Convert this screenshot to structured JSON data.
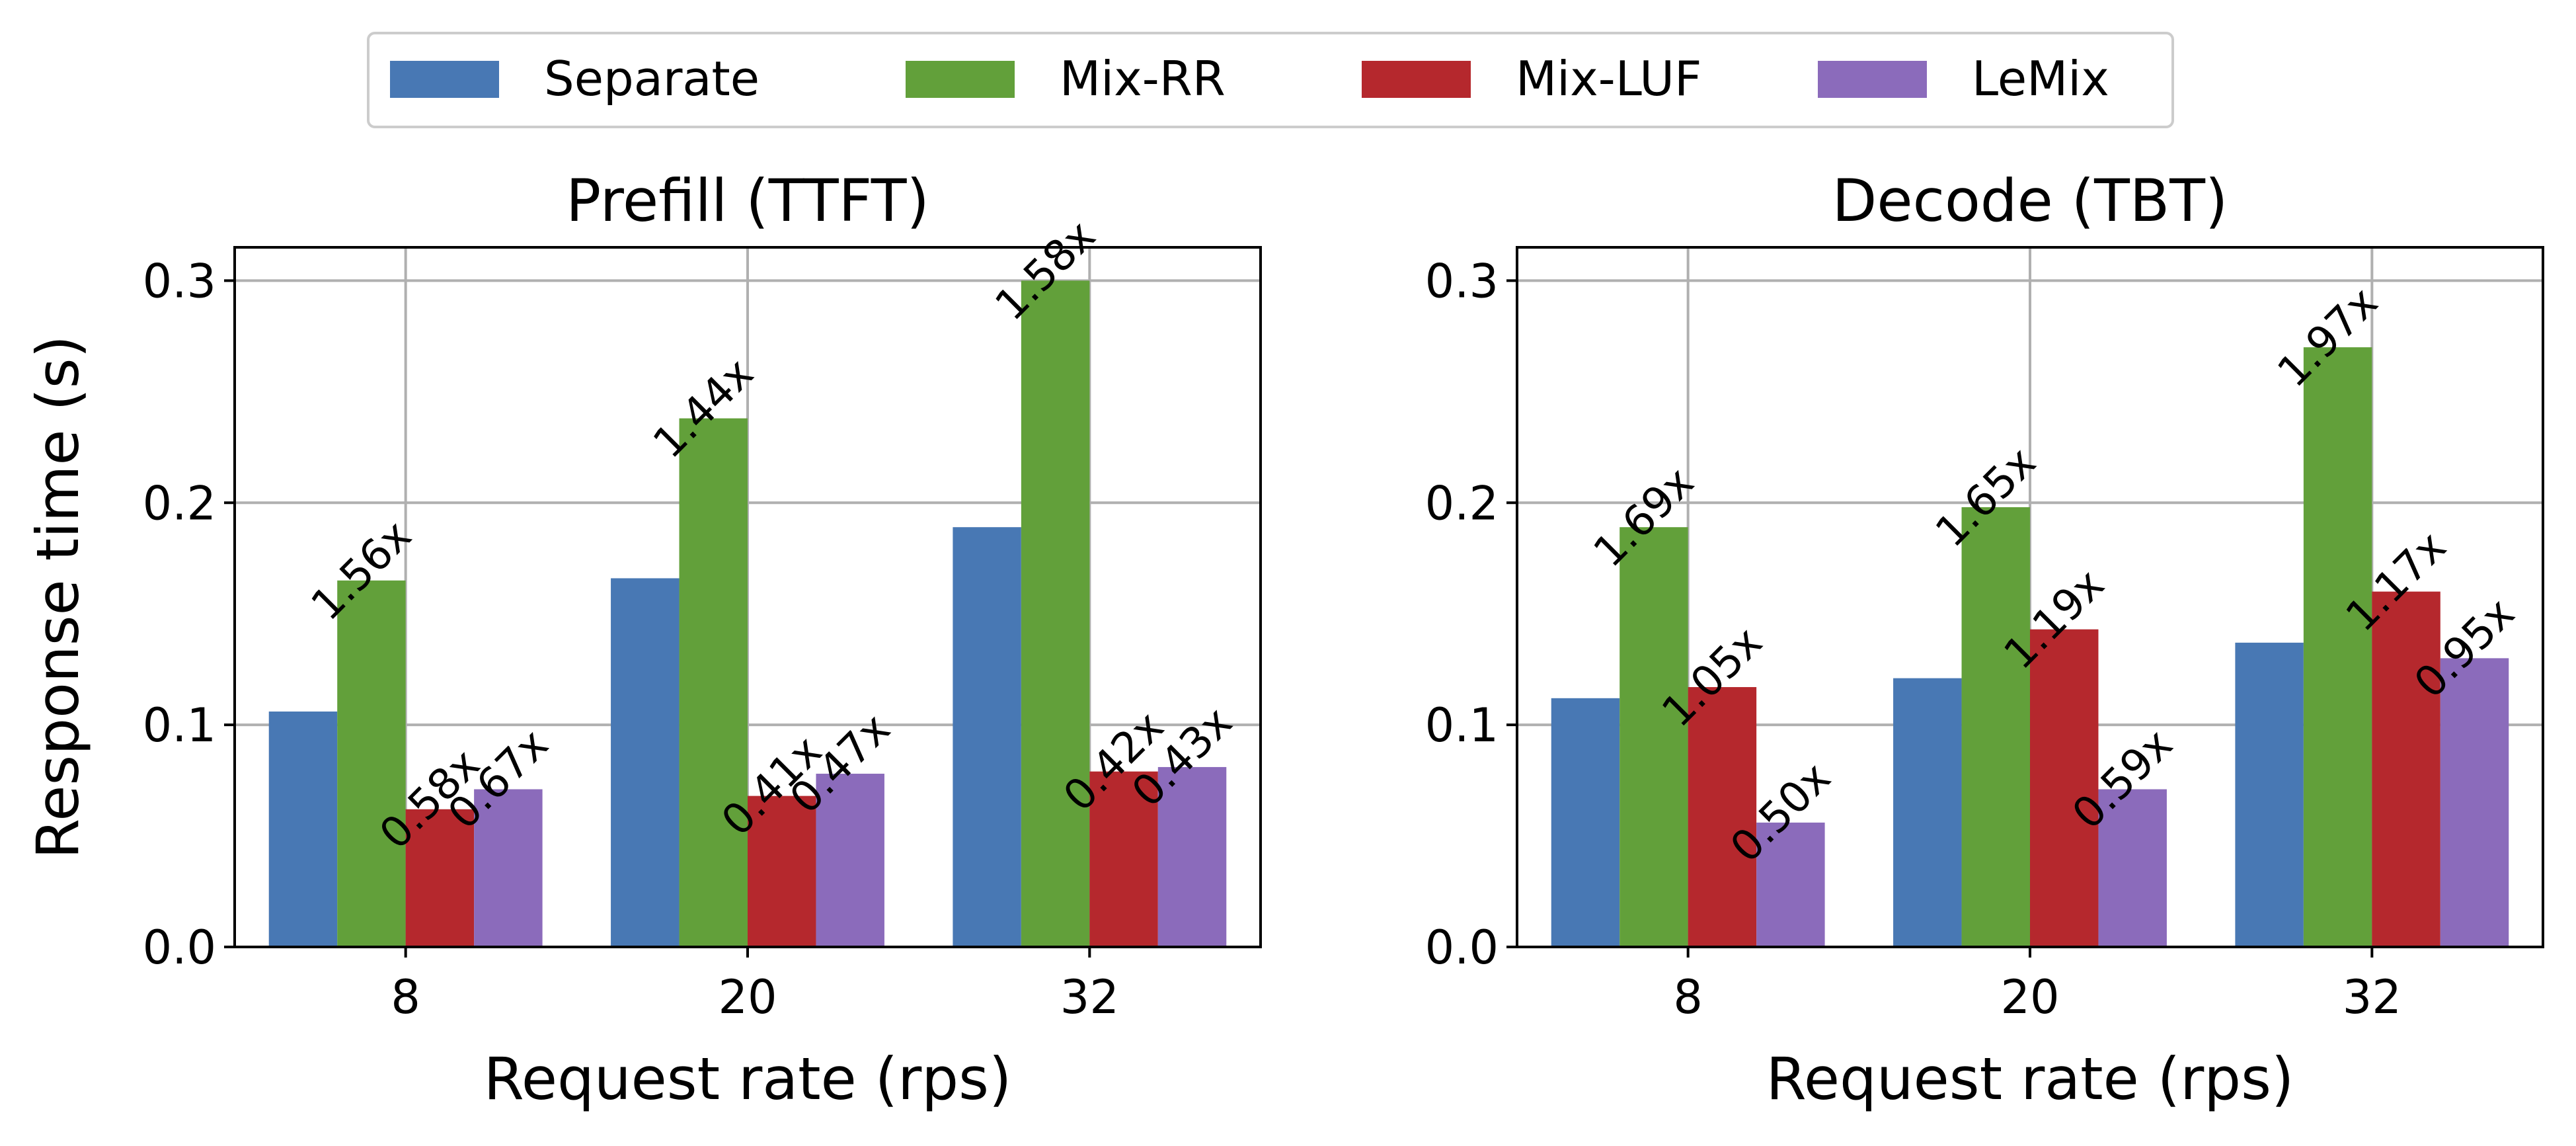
{
  "chart_data": [
    {
      "type": "bar",
      "title": "Prefill (TTFT)",
      "xlabel": "Request rate (rps)",
      "ylabel": "Response time (s)",
      "categories": [
        "8",
        "20",
        "32"
      ],
      "ylim": [
        0,
        0.315
      ],
      "yticks": [
        "0.0",
        "0.1",
        "0.2",
        "0.3"
      ],
      "grid": true,
      "series": [
        {
          "name": "Separate",
          "values": [
            0.106,
            0.166,
            0.189
          ],
          "labels": [
            "",
            "",
            ""
          ]
        },
        {
          "name": "Mix-RR",
          "values": [
            0.165,
            0.238,
            0.3
          ],
          "labels": [
            "1.56x",
            "1.44x",
            "1.58x"
          ]
        },
        {
          "name": "Mix-LUF",
          "values": [
            0.062,
            0.068,
            0.079
          ],
          "labels": [
            "0.58x",
            "0.41x",
            "0.42x"
          ]
        },
        {
          "name": "LeMix",
          "values": [
            0.071,
            0.078,
            0.081
          ],
          "labels": [
            "0.67x",
            "0.47x",
            "0.43x"
          ]
        }
      ]
    },
    {
      "type": "bar",
      "title": "Decode (TBT)",
      "xlabel": "Request rate (rps)",
      "ylabel": "",
      "categories": [
        "8",
        "20",
        "32"
      ],
      "ylim": [
        0,
        0.315
      ],
      "yticks": [
        "0.0",
        "0.1",
        "0.2",
        "0.3"
      ],
      "grid": true,
      "series": [
        {
          "name": "Separate",
          "values": [
            0.112,
            0.121,
            0.137
          ],
          "labels": [
            "",
            "",
            ""
          ]
        },
        {
          "name": "Mix-RR",
          "values": [
            0.189,
            0.198,
            0.27
          ],
          "labels": [
            "1.69x",
            "1.65x",
            "1.97x"
          ]
        },
        {
          "name": "Mix-LUF",
          "values": [
            0.117,
            0.143,
            0.16
          ],
          "labels": [
            "1.05x",
            "1.19x",
            "1.17x"
          ]
        },
        {
          "name": "LeMix",
          "values": [
            0.056,
            0.071,
            0.13
          ],
          "labels": [
            "0.50x",
            "0.59x",
            "0.95x"
          ]
        }
      ]
    }
  ],
  "legend": {
    "placement": "top-center",
    "items": [
      "Separate",
      "Mix-RR",
      "Mix-LUF",
      "LeMix"
    ]
  },
  "colors": {
    "Separate": "#4878b4",
    "Mix-RR": "#62a03a",
    "Mix-LUF": "#b5282d",
    "LeMix": "#8b6bbb"
  }
}
